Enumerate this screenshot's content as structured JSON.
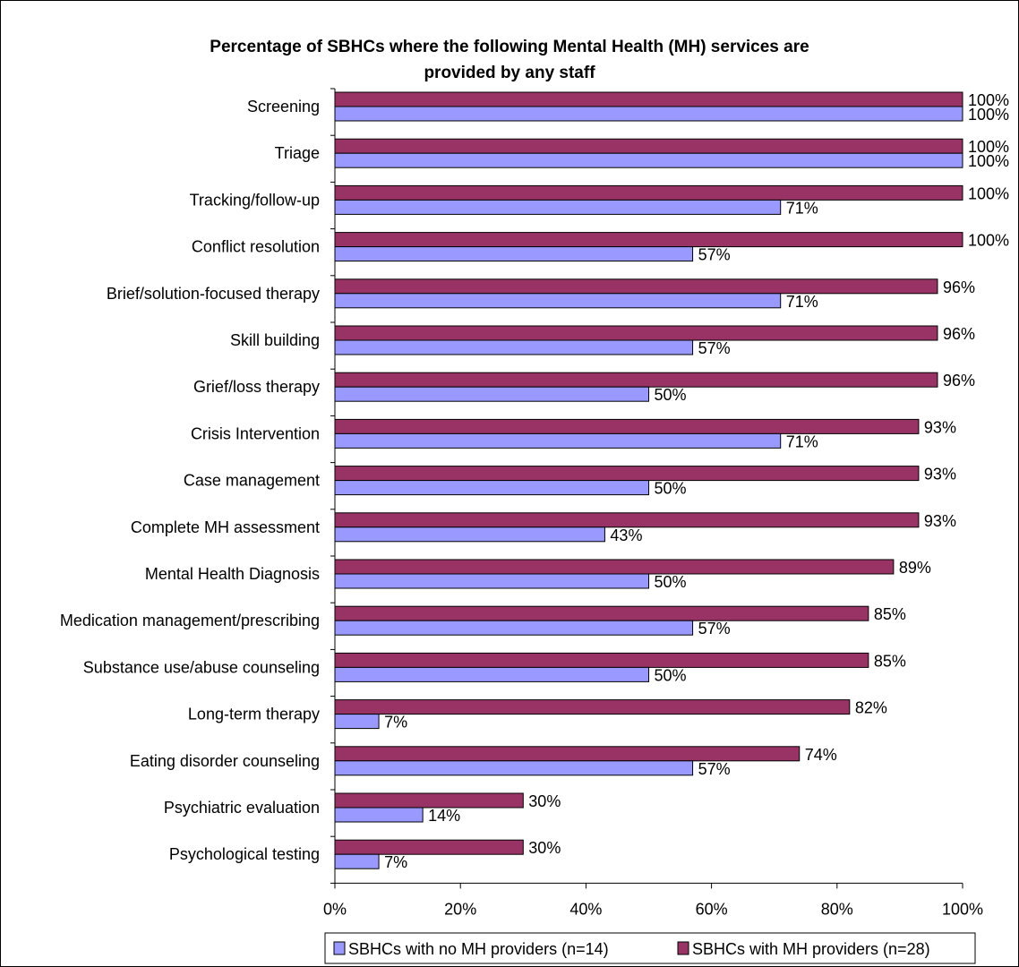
{
  "chart_data": {
    "type": "bar",
    "orientation": "horizontal",
    "title": "Percentage of SBHCs where the following Mental Health (MH) services are provided by any staff",
    "title_lines": [
      "Percentage of SBHCs where the following Mental Health (MH) services are",
      "provided by any staff"
    ],
    "categories": [
      "Screening",
      "Triage",
      "Tracking/follow-up",
      "Conflict resolution",
      "Brief/solution-focused therapy",
      "Skill building",
      "Grief/loss therapy",
      "Crisis Intervention",
      "Case management",
      "Complete MH assessment",
      "Mental Health Diagnosis",
      "Medication management/prescribing",
      "Substance use/abuse counseling",
      "Long-term therapy",
      "Eating disorder counseling",
      "Psychiatric evaluation",
      "Psychological testing"
    ],
    "series": [
      {
        "name": "SBHCs with MH providers (n=28)",
        "color": "#993366",
        "values": [
          100,
          100,
          100,
          100,
          96,
          96,
          96,
          93,
          93,
          93,
          89,
          85,
          85,
          82,
          74,
          30,
          30
        ]
      },
      {
        "name": "SBHCs with no MH providers (n=14)",
        "color": "#9999ff",
        "values": [
          100,
          100,
          71,
          57,
          71,
          57,
          50,
          71,
          50,
          43,
          50,
          57,
          50,
          7,
          57,
          14,
          7
        ]
      }
    ],
    "value_axis": {
      "min": 0,
      "max": 100,
      "ticks": [
        0,
        20,
        40,
        60,
        80,
        100
      ],
      "tick_labels": [
        "0%",
        "20%",
        "40%",
        "60%",
        "80%",
        "100%"
      ]
    },
    "value_suffix": "%",
    "legend": {
      "placement": "bottom-right",
      "items": [
        {
          "label": "SBHCs with no MH providers (n=14)",
          "color": "#9999ff"
        },
        {
          "label": "SBHCs with MH providers (n=28)",
          "color": "#993366"
        }
      ]
    },
    "grid": false
  }
}
